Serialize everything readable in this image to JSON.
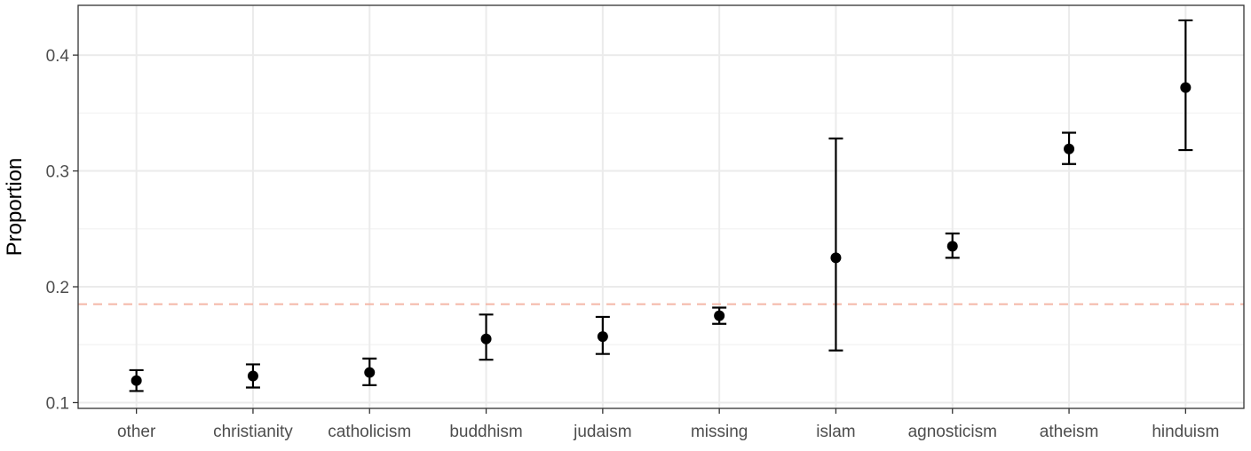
{
  "chart_data": {
    "type": "scatter",
    "subtype": "point-errorbar",
    "title": "",
    "xlabel": "",
    "ylabel": "Proportion",
    "ylim": [
      0.095,
      0.443
    ],
    "yticks": [
      0.1,
      0.2,
      0.3,
      0.4
    ],
    "ytick_labels": [
      "0.1",
      "0.2",
      "0.3",
      "0.4"
    ],
    "grid": true,
    "legend": "none",
    "categories": [
      "other",
      "christianity",
      "catholicism",
      "buddhism",
      "judaism",
      "missing",
      "islam",
      "agnosticism",
      "atheism",
      "hinduism"
    ],
    "values": [
      0.119,
      0.123,
      0.126,
      0.155,
      0.157,
      0.175,
      0.225,
      0.235,
      0.319,
      0.372
    ],
    "lower": [
      0.11,
      0.113,
      0.115,
      0.137,
      0.142,
      0.168,
      0.145,
      0.225,
      0.306,
      0.318
    ],
    "upper": [
      0.128,
      0.133,
      0.138,
      0.176,
      0.174,
      0.182,
      0.328,
      0.246,
      0.333,
      0.43
    ],
    "reference_line": {
      "value": 0.185,
      "style": "dashed",
      "color": "#f4b6a7"
    },
    "colors": {
      "points": "#000000",
      "grid": "#ebebeb",
      "panel_border": "#333333"
    }
  }
}
